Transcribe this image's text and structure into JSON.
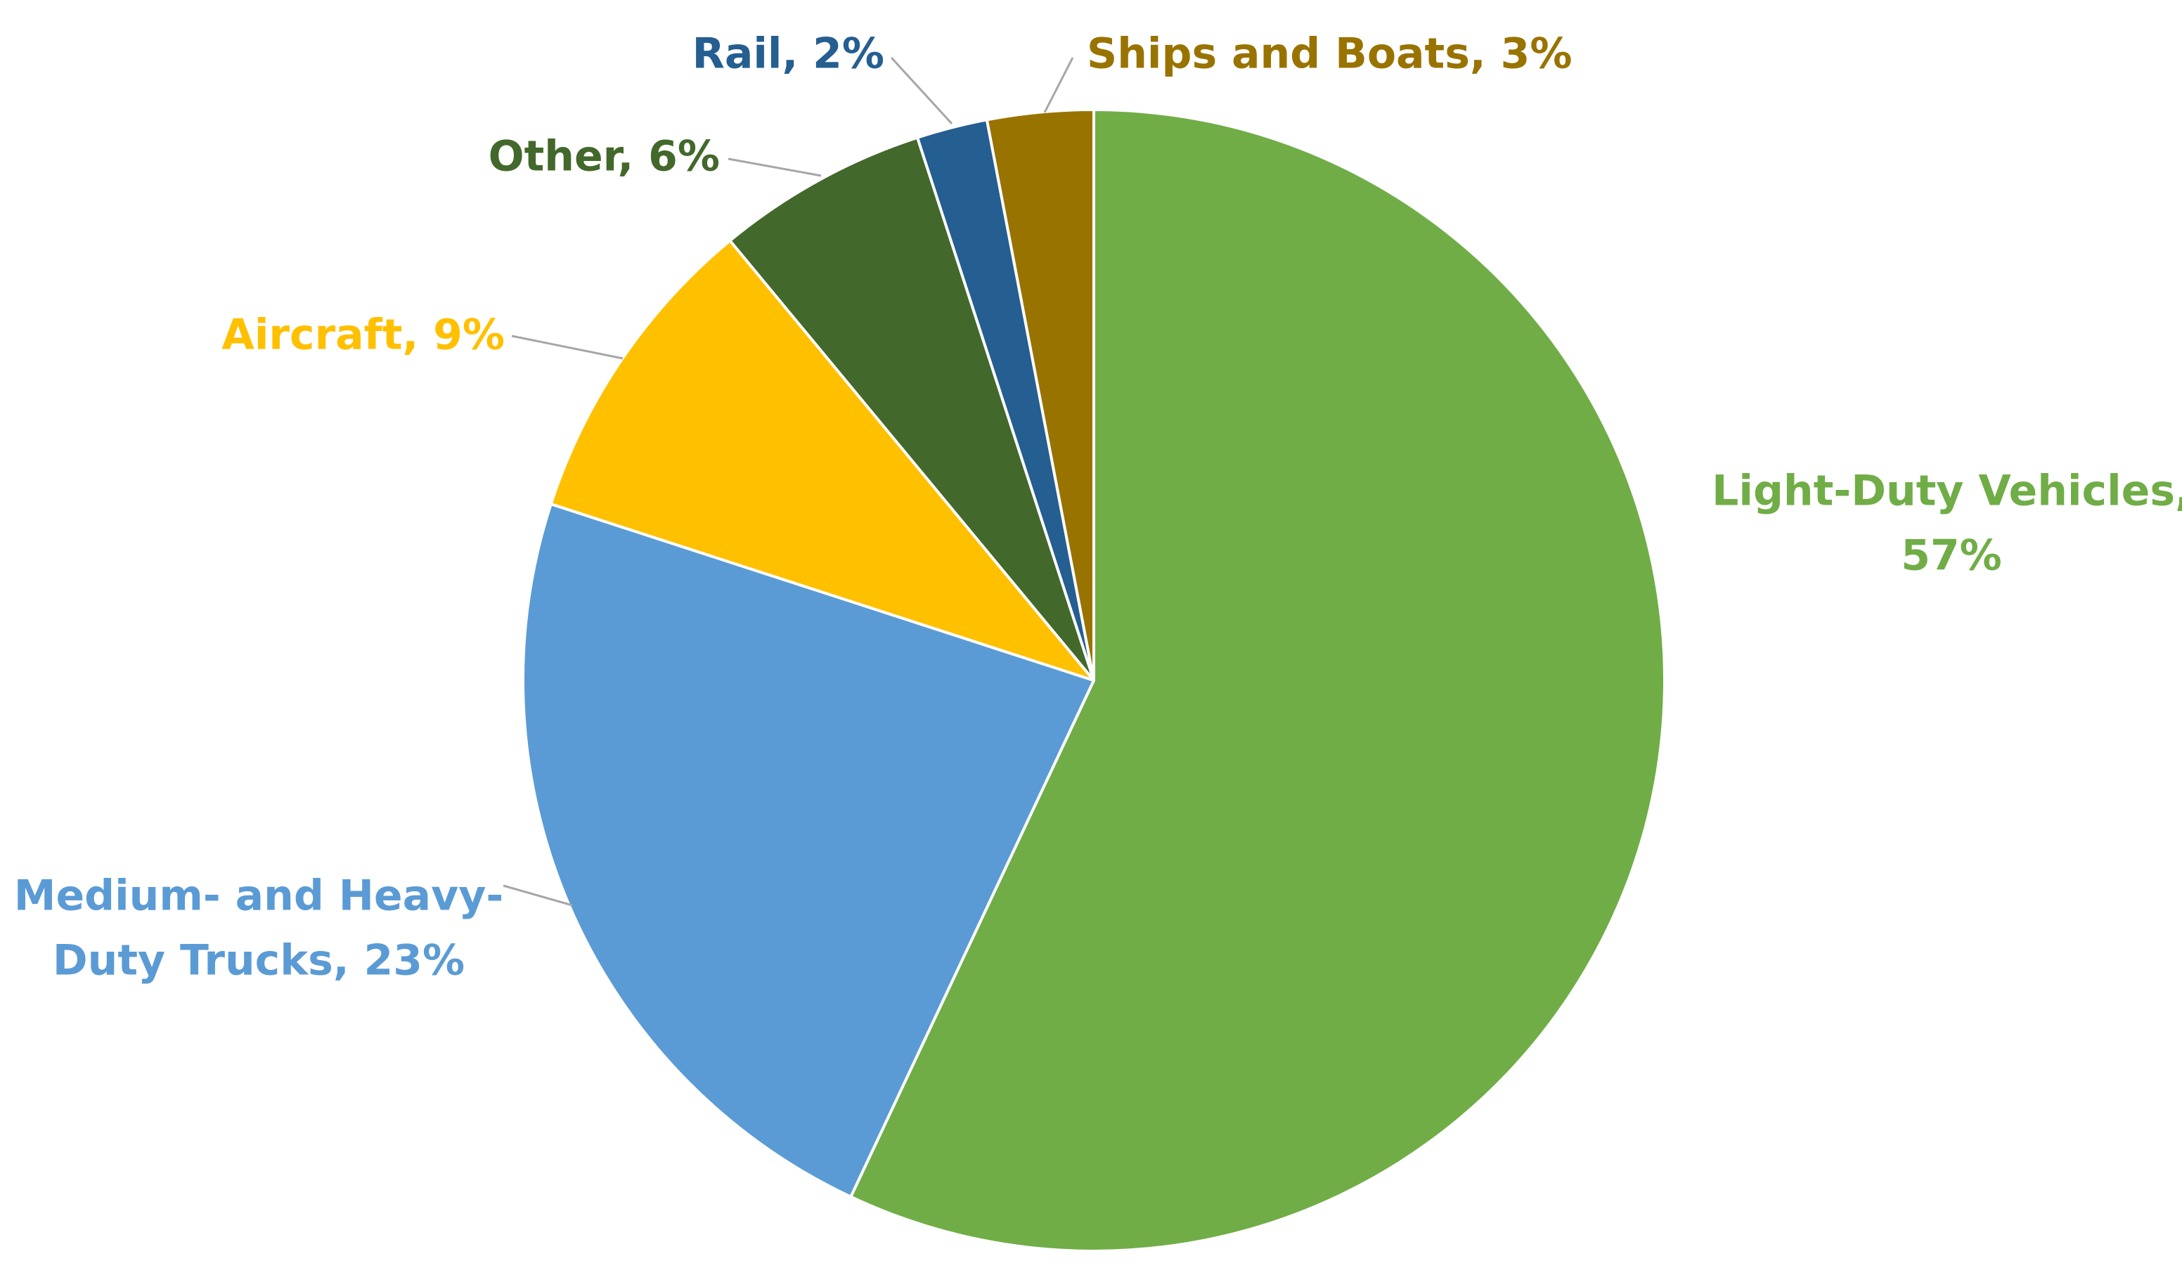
{
  "chart_data": {
    "type": "pie",
    "start_angle_deg": 0,
    "direction": "clockwise",
    "slices": [
      {
        "name": "Light-Duty Vehicles",
        "value": 57,
        "color": "#70AD47",
        "label_lines": [
          "Light-Duty Vehicles,",
          "57%"
        ]
      },
      {
        "name": "Medium- and Heavy-Duty Trucks",
        "value": 23,
        "color": "#5B9BD5",
        "label_lines": [
          "Medium- and Heavy-",
          "Duty Trucks, 23%"
        ]
      },
      {
        "name": "Aircraft",
        "value": 9,
        "color": "#FFC000",
        "label_lines": [
          "Aircraft, 9%"
        ]
      },
      {
        "name": "Other",
        "value": 6,
        "color": "#43682B",
        "label_lines": [
          "Other, 6%"
        ]
      },
      {
        "name": "Rail",
        "value": 2,
        "color": "#255E91",
        "label_lines": [
          "Rail, 2%"
        ]
      },
      {
        "name": "Ships and Boats",
        "value": 3,
        "color": "#997300",
        "label_lines": [
          "Ships and Boats, 3%"
        ]
      }
    ]
  }
}
